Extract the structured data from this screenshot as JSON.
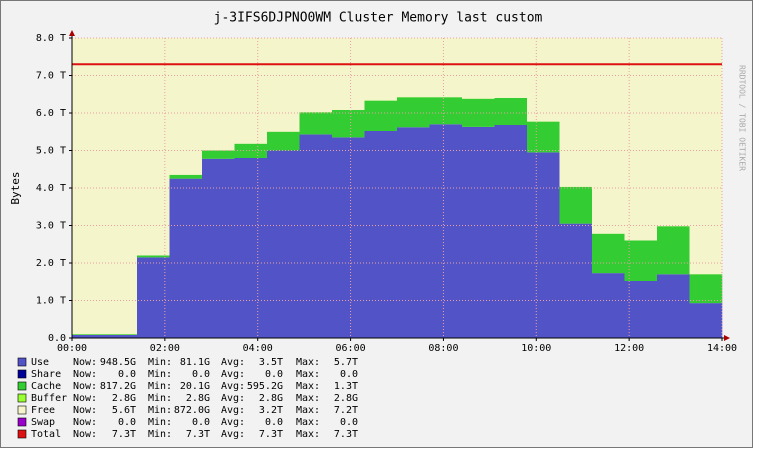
{
  "chart_data": {
    "type": "stacked-area",
    "title": "j-3IFS6DJPNO0WM Cluster Memory last custom",
    "y_label": "Bytes",
    "watermark": "RRDTOOL / TOBI OETIKER",
    "x": [
      0,
      0.7,
      1.4,
      2.1,
      2.8,
      3.5,
      4.2,
      4.9,
      5.6,
      6.3,
      7.0,
      7.7,
      8.4,
      9.1,
      9.8,
      10.5,
      11.2,
      11.9,
      12.6,
      13.3
    ],
    "xlim": [
      0,
      14
    ],
    "xticks": [
      {
        "value": 0,
        "label": "00:00"
      },
      {
        "value": 2,
        "label": "02:00"
      },
      {
        "value": 4,
        "label": "04:00"
      },
      {
        "value": 6,
        "label": "06:00"
      },
      {
        "value": 8,
        "label": "08:00"
      },
      {
        "value": 10,
        "label": "10:00"
      },
      {
        "value": 12,
        "label": "12:00"
      },
      {
        "value": 14,
        "label": "14:00"
      }
    ],
    "ylim": [
      0,
      8
    ],
    "yticks": [
      {
        "value": 0,
        "label": "0.0"
      },
      {
        "value": 1,
        "label": "1.0 T"
      },
      {
        "value": 2,
        "label": "2.0 T"
      },
      {
        "value": 3,
        "label": "3.0 T"
      },
      {
        "value": 4,
        "label": "4.0 T"
      },
      {
        "value": 5,
        "label": "5.0 T"
      },
      {
        "value": 6,
        "label": "6.0 T"
      },
      {
        "value": 7,
        "label": "7.0 T"
      },
      {
        "value": 8,
        "label": "8.0 T"
      }
    ],
    "grid": true,
    "stat_labels": [
      "Now:",
      "Min:",
      "Avg:",
      "Max:"
    ],
    "series": [
      {
        "name": "Use",
        "color": "#5353c8",
        "stats": [
          "948.5G",
          "81.1G",
          "3.5T",
          "5.7T"
        ],
        "values": [
          0.08,
          0.08,
          2.15,
          4.25,
          4.78,
          4.8,
          5.0,
          5.43,
          5.35,
          5.52,
          5.62,
          5.7,
          5.63,
          5.68,
          4.95,
          3.05,
          1.73,
          1.52,
          1.7,
          0.93
        ]
      },
      {
        "name": "Share",
        "color": "#000099",
        "stats": [
          "0.0",
          "0.0",
          "0.0",
          "0.0"
        ],
        "values": [
          0,
          0,
          0,
          0,
          0,
          0,
          0,
          0,
          0,
          0,
          0,
          0,
          0,
          0,
          0,
          0,
          0,
          0,
          0,
          0
        ]
      },
      {
        "name": "Cache",
        "color": "#33cc33",
        "stats": [
          "817.2G",
          "20.1G",
          "595.2G",
          "1.3T"
        ],
        "values": [
          0.02,
          0.02,
          0.05,
          0.1,
          0.22,
          0.38,
          0.5,
          0.59,
          0.73,
          0.81,
          0.8,
          0.72,
          0.75,
          0.72,
          0.82,
          0.98,
          1.05,
          1.08,
          1.28,
          0.77
        ]
      },
      {
        "name": "Buffer",
        "color": "#99ff33",
        "stats": [
          "2.8G",
          "2.8G",
          "2.8G",
          "2.8G"
        ],
        "values": [
          0.0028,
          0.0028,
          0.0028,
          0.0028,
          0.0028,
          0.0028,
          0.0028,
          0.0028,
          0.0028,
          0.0028,
          0.0028,
          0.0028,
          0.0028,
          0.0028,
          0.0028,
          0.0028,
          0.0028,
          0.0028,
          0.0028,
          0.0028
        ]
      },
      {
        "name": "Free",
        "color": "#f5f5cc",
        "stats": [
          "5.6T",
          "872.0G",
          "3.2T",
          "7.2T"
        ],
        "values": [
          7.2,
          7.2,
          5.1,
          2.95,
          2.3,
          2.12,
          1.8,
          1.28,
          1.22,
          0.97,
          0.88,
          0.88,
          0.92,
          0.9,
          1.53,
          3.27,
          4.52,
          4.7,
          4.32,
          5.6
        ]
      },
      {
        "name": "Swap",
        "color": "#9900cc",
        "stats": [
          "0.0",
          "0.0",
          "0.0",
          "0.0"
        ],
        "values": [
          0,
          0,
          0,
          0,
          0,
          0,
          0,
          0,
          0,
          0,
          0,
          0,
          0,
          0,
          0,
          0,
          0,
          0,
          0,
          0
        ]
      },
      {
        "name": "Total",
        "color": "#dd1111",
        "line": true,
        "stats": [
          "7.3T",
          "7.3T",
          "7.3T",
          "7.3T"
        ],
        "values": [
          7.3,
          7.3,
          7.3,
          7.3,
          7.3,
          7.3,
          7.3,
          7.3,
          7.3,
          7.3,
          7.3,
          7.3,
          7.3,
          7.3,
          7.3,
          7.3,
          7.3,
          7.3,
          7.3,
          7.3
        ]
      }
    ]
  }
}
